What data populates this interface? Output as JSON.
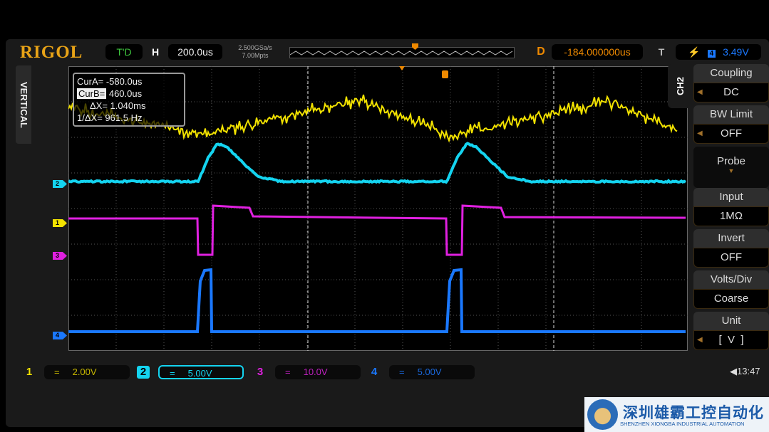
{
  "header": {
    "brand": "RIGOL",
    "run_status": "T'D",
    "horizontal_label": "H",
    "timebase": "200.0us",
    "sample_rate": "2.500GSa/s",
    "memory_depth": "7.00Mpts",
    "delay_label": "D",
    "delay": "-184.000000us",
    "trigger_label": "T",
    "trigger_source": "4",
    "trigger_level": "3.49V"
  },
  "side_label": "VERTICAL",
  "cursor": {
    "cur_a_label": "CurA=",
    "cur_a": "-580.0us",
    "cur_b_label": "CurB=",
    "cur_b": "460.0us",
    "dx_label": "ΔX=",
    "dx": "1.040ms",
    "inv_dx_label": "1/ΔX=",
    "inv_dx": "961.5 Hz"
  },
  "menu": {
    "channel": "CH2",
    "items": [
      {
        "title": "Coupling",
        "value": "DC"
      },
      {
        "title": "BW Limit",
        "value": "OFF"
      },
      {
        "title": "Probe",
        "value": ""
      },
      {
        "title": "Input",
        "value": "1MΩ"
      },
      {
        "title": "Invert",
        "value": "OFF"
      },
      {
        "title": "Volts/Div",
        "value": "Coarse"
      },
      {
        "title": "Unit",
        "value": "[  V  ]"
      }
    ]
  },
  "channels": [
    {
      "num": "1",
      "coupling": "=",
      "scale": "2.00V",
      "color": "#f2e200"
    },
    {
      "num": "2",
      "coupling": "=",
      "scale": "5.00V",
      "color": "#14d4f0"
    },
    {
      "num": "3",
      "coupling": "=",
      "scale": "10.0V",
      "color": "#e020e0"
    },
    {
      "num": "4",
      "coupling": "=",
      "scale": "5.00V",
      "color": "#1a78ff"
    }
  ],
  "time": "13:47",
  "watermark": {
    "zh": "深圳雄霸工控自动化",
    "en": "SHENZHEN XIONGBA INDUSTRIAL AUTOMATION"
  }
}
